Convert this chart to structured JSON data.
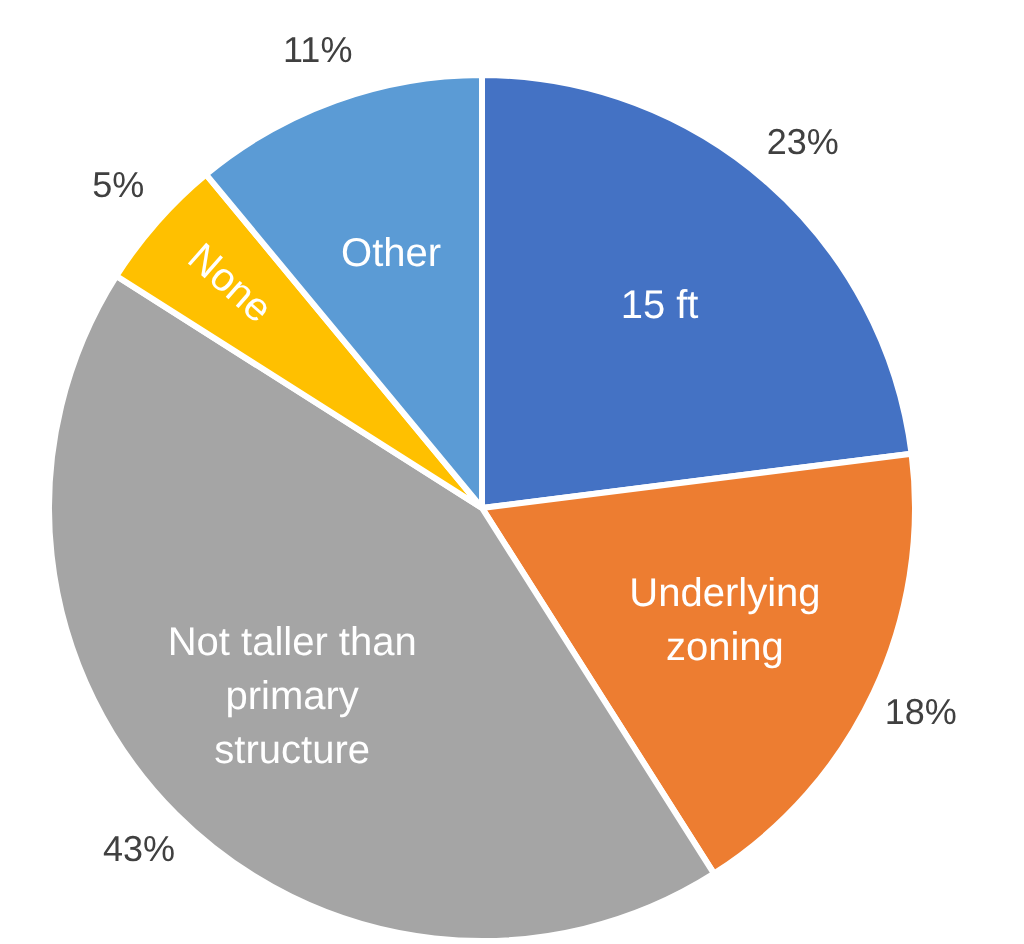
{
  "chart_data": {
    "type": "pie",
    "categories": [
      "15 ft",
      "Underlying zoning",
      "Not taller than primary structure",
      "None",
      "Other"
    ],
    "values": [
      23,
      18,
      43,
      5,
      11
    ],
    "value_labels": [
      "23%",
      "18%",
      "43%",
      "5%",
      "11%"
    ],
    "colors": [
      "#4472c4",
      "#ed7d31",
      "#a5a5a5",
      "#ffc000",
      "#5b9bd5"
    ],
    "legend": false
  }
}
